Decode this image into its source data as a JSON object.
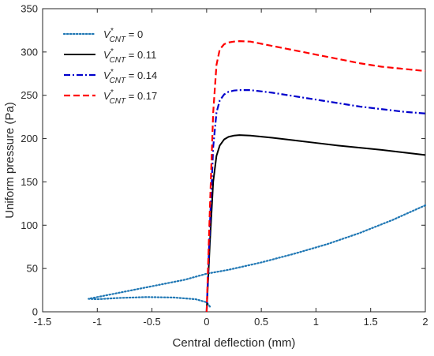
{
  "chart_data": {
    "type": "line",
    "title": "",
    "xlabel": "Central deflection (mm)",
    "ylabel": "Uniform pressure (Pa)",
    "xlim": [
      -1.5,
      2
    ],
    "ylim": [
      0,
      350
    ],
    "xticks": [
      "-1.5",
      "-1",
      "-0.5",
      "0",
      "0.5",
      "1",
      "1.5",
      "2"
    ],
    "yticks": [
      "0",
      "50",
      "100",
      "150",
      "200",
      "250",
      "300",
      "350"
    ],
    "grid": false,
    "legend_position": "top-left",
    "series": [
      {
        "name": "V*CNT = 0",
        "legend": {
          "base": "V",
          "sup": "*",
          "sub": "CNT",
          "suffix": " = 0"
        },
        "color": "#1f77b4",
        "style": "dotted",
        "x": [
          0.03,
          0.0,
          -0.1,
          -0.3,
          -0.55,
          -0.8,
          -1.0,
          -1.08,
          -1.0,
          -0.8,
          -0.6,
          -0.4,
          -0.2,
          0.0,
          0.2,
          0.5,
          0.8,
          1.1,
          1.4,
          1.7,
          2.0
        ],
        "y": [
          6,
          11,
          14.5,
          16.5,
          17,
          16,
          14.5,
          15,
          17,
          22,
          27,
          32,
          37,
          44,
          48.5,
          57,
          67,
          78,
          91,
          106,
          123
        ]
      },
      {
        "name": "V*CNT = 0.11",
        "legend": {
          "base": "V",
          "sup": "*",
          "sub": "CNT",
          "suffix": " = 0.11"
        },
        "color": "#000000",
        "style": "solid",
        "x": [
          0.0,
          0.03,
          0.06,
          0.09,
          0.12,
          0.16,
          0.2,
          0.25,
          0.3,
          0.4,
          0.6,
          0.8,
          1.0,
          1.2,
          1.4,
          1.6,
          1.8,
          2.0
        ],
        "y": [
          0,
          80,
          150,
          180,
          192,
          199,
          202,
          203.5,
          204,
          203.5,
          201,
          198,
          195,
          192,
          189.5,
          187,
          184,
          181
        ]
      },
      {
        "name": "V*CNT = 0.14",
        "legend": {
          "base": "V",
          "sup": "*",
          "sub": "CNT",
          "suffix": " = 0.14"
        },
        "color": "#0000cc",
        "style": "dashdot",
        "x": [
          0.0,
          0.03,
          0.06,
          0.09,
          0.12,
          0.16,
          0.2,
          0.25,
          0.3,
          0.4,
          0.6,
          0.8,
          1.0,
          1.2,
          1.4,
          1.6,
          1.8,
          2.0
        ],
        "y": [
          0,
          100,
          190,
          230,
          244,
          251,
          254,
          255.5,
          256,
          256,
          253,
          249,
          245,
          241,
          237,
          234,
          231,
          229
        ]
      },
      {
        "name": "V*CNT = 0.17",
        "legend": {
          "base": "V",
          "sup": "*",
          "sub": "CNT",
          "suffix": " = 0.17"
        },
        "color": "#ff0000",
        "style": "dashed",
        "x": [
          0.0,
          0.03,
          0.06,
          0.09,
          0.12,
          0.16,
          0.2,
          0.25,
          0.3,
          0.4,
          0.6,
          0.8,
          1.0,
          1.2,
          1.4,
          1.6,
          1.8,
          2.0
        ],
        "y": [
          0,
          120,
          230,
          285,
          303,
          309,
          311,
          312,
          312.5,
          312,
          307,
          302,
          297,
          292,
          287,
          283,
          280.5,
          278
        ]
      }
    ]
  }
}
